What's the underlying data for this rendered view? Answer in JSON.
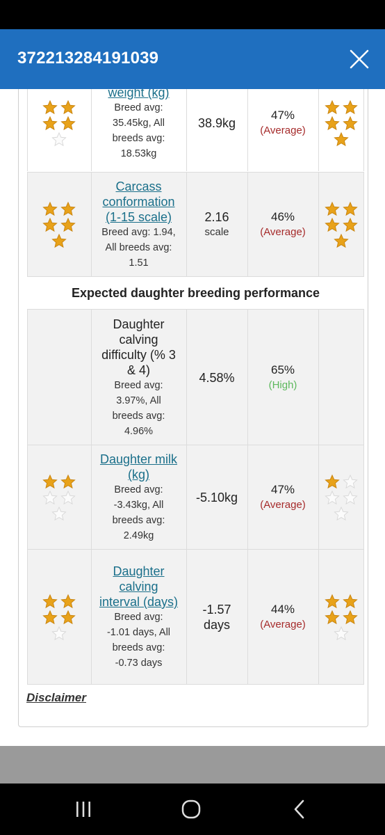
{
  "dialog": {
    "title": "372213284191039"
  },
  "rows": [
    {
      "name": "weight (kg)",
      "name_is_link": true,
      "avg_lines": [
        "Breed avg:",
        "35.45kg, All",
        "breeds avg:",
        "18.53kg"
      ],
      "value": "38.9kg",
      "value_unit": "",
      "reliability_pct": "47%",
      "reliability_label": "(Average)",
      "reliability_color": "#a52a2a",
      "stars_left": 4,
      "stars_right": 5
    },
    {
      "name": "Carcass conformation (1-15 scale)",
      "name_is_link": true,
      "avg_lines": [
        "Breed avg: 1.94,",
        "All breeds avg:",
        "1.51"
      ],
      "value": "2.16",
      "value_unit": "scale",
      "reliability_pct": "46%",
      "reliability_label": "(Average)",
      "reliability_color": "#a52a2a",
      "stars_left": 5,
      "stars_right": 5
    },
    {
      "section": "Expected daughter breeding performance"
    },
    {
      "name": "Daughter calving difficulty (% 3 & 4)",
      "name_is_link": false,
      "avg_lines": [
        "Breed avg:",
        "3.97%, All",
        "breeds avg:",
        "4.96%"
      ],
      "value": "4.58%",
      "value_unit": "",
      "reliability_pct": "65%",
      "reliability_label": "(High)",
      "reliability_color": "#5cb85c",
      "stars_left": 0,
      "stars_right": 0
    },
    {
      "name": "Daughter milk (kg)",
      "name_is_link": true,
      "avg_lines": [
        "Breed avg:",
        "-3.43kg, All",
        "breeds avg:",
        "2.49kg"
      ],
      "value": "-5.10kg",
      "value_unit": "",
      "reliability_pct": "47%",
      "reliability_label": "(Average)",
      "reliability_color": "#a52a2a",
      "stars_left": 2,
      "stars_right": 1
    },
    {
      "name": "Daughter calving interval (days)",
      "name_is_link": true,
      "avg_lines": [
        "Breed avg:",
        "-1.01 days, All",
        "breeds avg:",
        "-0.73 days"
      ],
      "value": "-1.57",
      "value_unit": "days",
      "reliability_pct": "44%",
      "reliability_label": "(Average)",
      "reliability_color": "#a52a2a",
      "stars_left": 4,
      "stars_right": 4
    }
  ],
  "disclaimer": "Disclaimer",
  "nav": {
    "recent": "recent-apps",
    "home": "home",
    "back": "back"
  }
}
